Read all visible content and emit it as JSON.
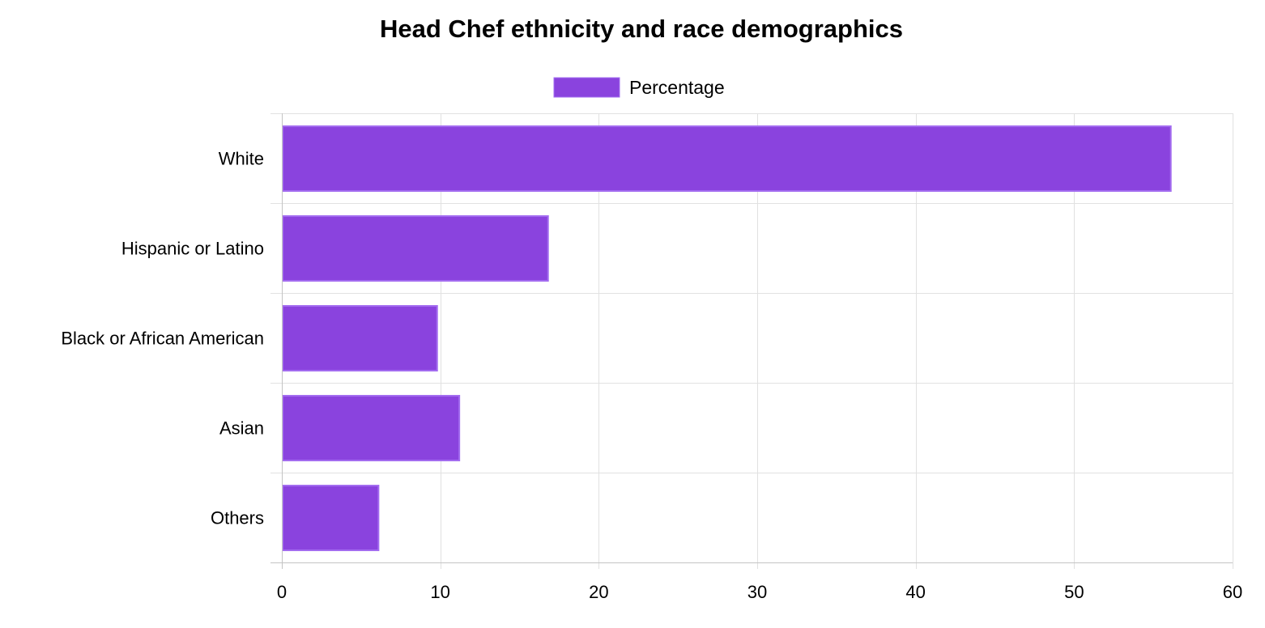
{
  "chart_data": {
    "type": "bar",
    "orientation": "horizontal",
    "title": "Head Chef ethnicity and race demographics",
    "categories": [
      "White",
      "Hispanic or Latino",
      "Black or African American",
      "Asian",
      "Others"
    ],
    "series": [
      {
        "name": "Percentage",
        "values": [
          56.1,
          16.8,
          9.8,
          11.2,
          6.1
        ],
        "color": "#8a43de",
        "border_color": "#a36cf0"
      }
    ],
    "xlim": [
      0,
      60
    ],
    "x_ticks": [
      0,
      10,
      20,
      30,
      40,
      50,
      60
    ],
    "xlabel": "",
    "ylabel": "",
    "grid": true,
    "legend": "top-center"
  }
}
